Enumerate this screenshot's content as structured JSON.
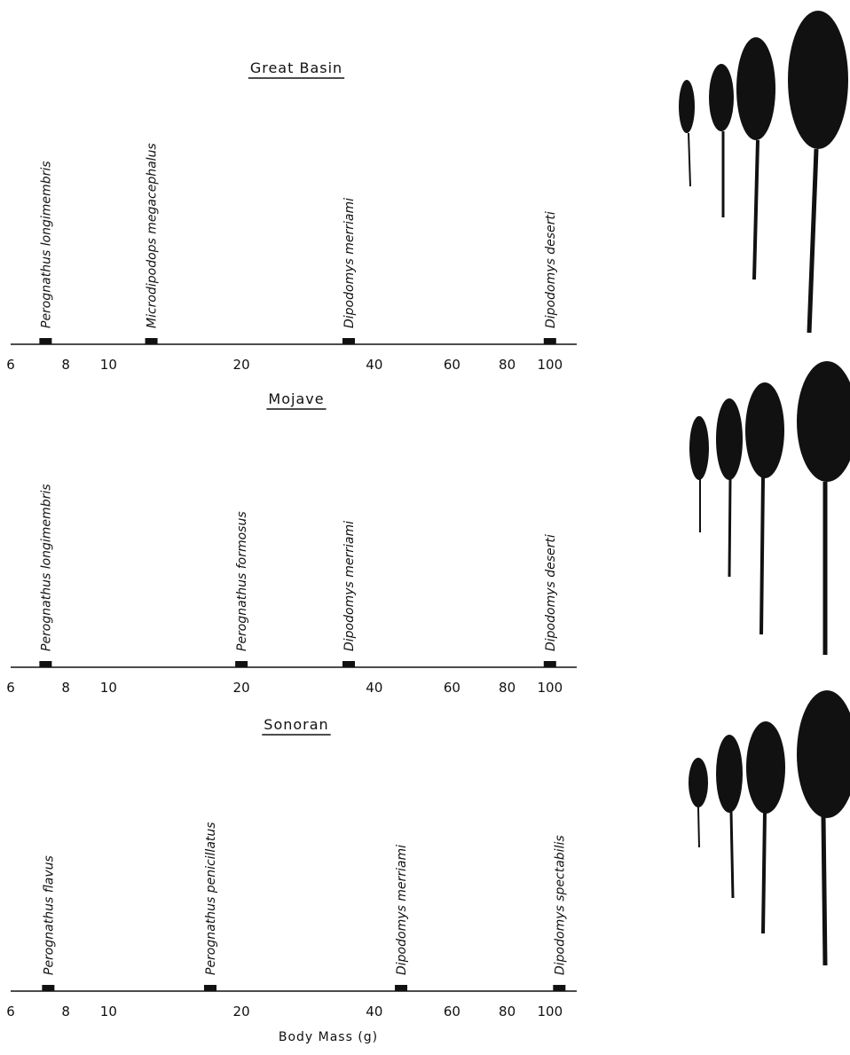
{
  "chart_data": [
    {
      "type": "strip",
      "title": "Great Basin",
      "categories": [
        "Perognathus longimembris",
        "Microdipodops megacephalus",
        "Dipodomys merriami",
        "Dipodomys deserti"
      ],
      "values": [
        7.2,
        12.5,
        35,
        100
      ],
      "color": "#111111",
      "log_x": true,
      "xlim": [
        6,
        115
      ],
      "xticks": [
        6,
        8,
        10,
        20,
        40,
        60,
        80,
        100
      ]
    },
    {
      "type": "strip",
      "title": "Mojave",
      "categories": [
        "Perognathus longimembris",
        "Perognathus formosus",
        "Dipodomys merriami",
        "Dipodomys deserti"
      ],
      "values": [
        7.2,
        20,
        35,
        100
      ],
      "color": "#111111",
      "log_x": true,
      "xlim": [
        6,
        115
      ],
      "xticks": [
        6,
        8,
        10,
        20,
        40,
        60,
        80,
        100
      ]
    },
    {
      "type": "strip",
      "title": "Sonoran",
      "categories": [
        "Perognathus flavus",
        "Perognathus penicillatus",
        "Dipodomys merriami",
        "Dipodomys spectabilis"
      ],
      "values": [
        7.3,
        17,
        46,
        105
      ],
      "color": "#111111",
      "log_x": true,
      "xlim": [
        6,
        115
      ],
      "xticks": [
        6,
        8,
        10,
        20,
        40,
        60,
        80,
        100
      ],
      "xlabel": "Body Mass (g)"
    }
  ]
}
